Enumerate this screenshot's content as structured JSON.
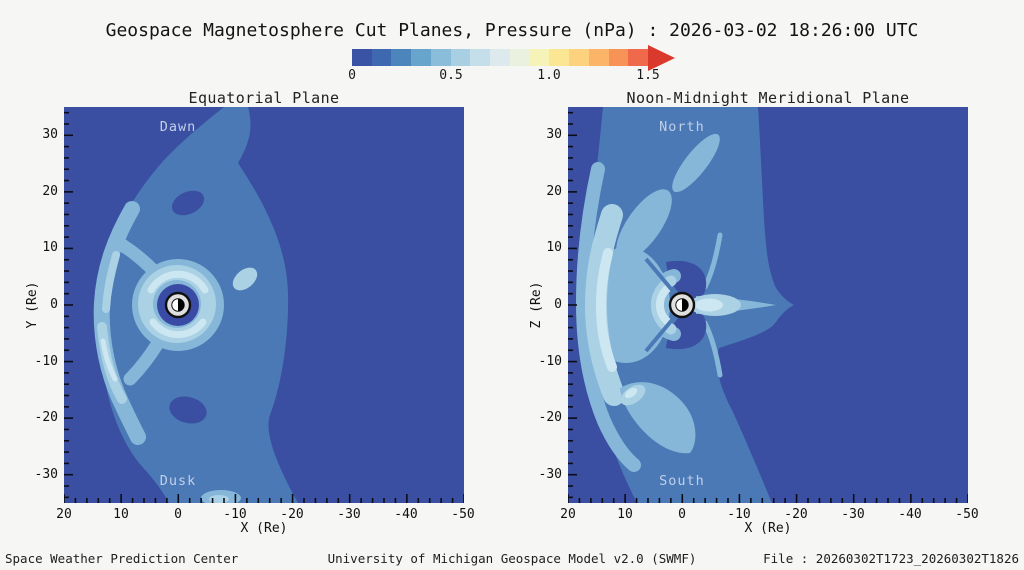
{
  "header": {
    "title": "Geospace Magnetosphere Cut Planes, Pressure (nPa) : 2026-03-02 18:26:00 UTC"
  },
  "colorbar": {
    "ticks": [
      "0",
      "0.5",
      "1.0",
      "1.5"
    ],
    "colors": [
      "#3A53A5",
      "#3E68B0",
      "#4C84BC",
      "#68A5CC",
      "#8ABDD9",
      "#A9CFE2",
      "#C5DFEA",
      "#DCEAED",
      "#EAF1DE",
      "#F5F3B8",
      "#FBE793",
      "#FCD27F",
      "#FBB468",
      "#F79356",
      "#EE6A4A"
    ],
    "arrow_color": "#D93A2B"
  },
  "panels": [
    {
      "title": "Equatorial Plane",
      "top_label": "Dawn",
      "bottom_label": "Dusk",
      "xlabel": "X (Re)",
      "ylabel": "Y (Re)",
      "x_ticks": [
        "20",
        "10",
        "0",
        "-10",
        "-20",
        "-30",
        "-40",
        "-50"
      ],
      "y_ticks": [
        "30",
        "20",
        "10",
        "0",
        "-10",
        "-20",
        "-30"
      ]
    },
    {
      "title": "Noon-Midnight Meridional Plane",
      "top_label": "North",
      "bottom_label": "South",
      "xlabel": "X (Re)",
      "ylabel": "Z (Re)",
      "x_ticks": [
        "20",
        "10",
        "0",
        "-10",
        "-20",
        "-30",
        "-40",
        "-50"
      ],
      "y_ticks": [
        "30",
        "20",
        "10",
        "0",
        "-10",
        "-20",
        "-30"
      ]
    }
  ],
  "footer": {
    "left": "Space Weather Prediction Center",
    "center": "University of Michigan Geospace Model v2.0 (SWMF)",
    "right": "File : 20260302T1723_20260302T1826"
  },
  "chart_data": [
    {
      "type": "heatmap",
      "subtype": "filled-contour",
      "title": "Equatorial Plane",
      "xlabel": "X (Re)",
      "ylabel": "Y (Re)",
      "xlim": [
        20,
        -50
      ],
      "ylim": [
        -35,
        35
      ],
      "x_ticks": [
        20,
        10,
        0,
        -10,
        -20,
        -30,
        -40,
        -50
      ],
      "y_ticks": [
        30,
        20,
        10,
        0,
        -10,
        -20,
        -30
      ],
      "grid": false,
      "annotations": [
        "Dawn (top)",
        "Dusk (bottom)",
        "Earth half-shaded disc at origin"
      ],
      "colorbar": {
        "label": "Pressure (nPa)",
        "ticks": [
          0,
          0.5,
          1.0,
          1.5
        ],
        "range": [
          0,
          1.5
        ],
        "contour_interval": 0.1,
        "overflow_arrow": true
      },
      "level_fill_colors": {
        "0.0-0.1": "#3A4FA1",
        "0.1-0.2": "#4A79B6",
        "0.2-0.3": "#86B6D8",
        "0.3-0.4": "#ABD1E4",
        "0.4-0.5": "#CCE7F1"
      },
      "features": [
        {
          "name": "magnetosheath-arc",
          "nose_x_re": 14,
          "pressure_npa_est": 0.3
        },
        {
          "name": "ring-current-annulus",
          "radius_re": "4-8",
          "pressure_npa_est": 0.4
        },
        {
          "name": "inner-cavity-around-earth",
          "radius_re": "<4",
          "pressure_npa_est": 0.1
        },
        {
          "name": "magnetotail-teardrop",
          "extent_x_re": -20,
          "pressure_npa_est": 0.2
        },
        {
          "name": "low-pressure-holes",
          "locations_re": [
            [
              -2,
              18
            ],
            [
              -2,
              -18
            ]
          ],
          "pressure_npa_est": 0.1
        }
      ]
    },
    {
      "type": "heatmap",
      "subtype": "filled-contour",
      "title": "Noon-Midnight Meridional Plane",
      "xlabel": "X (Re)",
      "ylabel": "Z (Re)",
      "xlim": [
        20,
        -50
      ],
      "ylim": [
        -35,
        35
      ],
      "x_ticks": [
        20,
        10,
        0,
        -10,
        -20,
        -30,
        -40,
        -50
      ],
      "y_ticks": [
        30,
        20,
        10,
        0,
        -10,
        -20,
        -30
      ],
      "grid": false,
      "annotations": [
        "North (top)",
        "South (bottom)",
        "Earth half-shaded disc at origin"
      ],
      "colorbar": {
        "label": "Pressure (nPa)",
        "ticks": [
          0,
          0.5,
          1.0,
          1.5
        ],
        "range": [
          0,
          1.5
        ],
        "contour_interval": 0.1,
        "overflow_arrow": true
      },
      "level_fill_colors": {
        "0.0-0.1": "#3A4FA1",
        "0.1-0.2": "#4A79B6",
        "0.2-0.3": "#86B6D8",
        "0.3-0.4": "#ABD1E4",
        "0.4-0.5": "#CCE7F1"
      },
      "features": [
        {
          "name": "bow-arc",
          "nose_x_re": 17,
          "pressure_npa_est": 0.4
        },
        {
          "name": "dayside-compressed-ring",
          "x_re": "0-5 sunward",
          "pressure_npa_est": 0.45
        },
        {
          "name": "plasma-sheet-tail-spike",
          "extent_x_re": -18,
          "z_re": 0,
          "pressure_npa_est": 0.3
        },
        {
          "name": "polar-lobes-low-pressure",
          "above_below_earth": true,
          "pressure_npa_est": 0.1
        },
        {
          "name": "diagonal-cusp-bands",
          "toward": "top-right and bottom-center",
          "pressure_npa_est": 0.2
        }
      ]
    }
  ]
}
